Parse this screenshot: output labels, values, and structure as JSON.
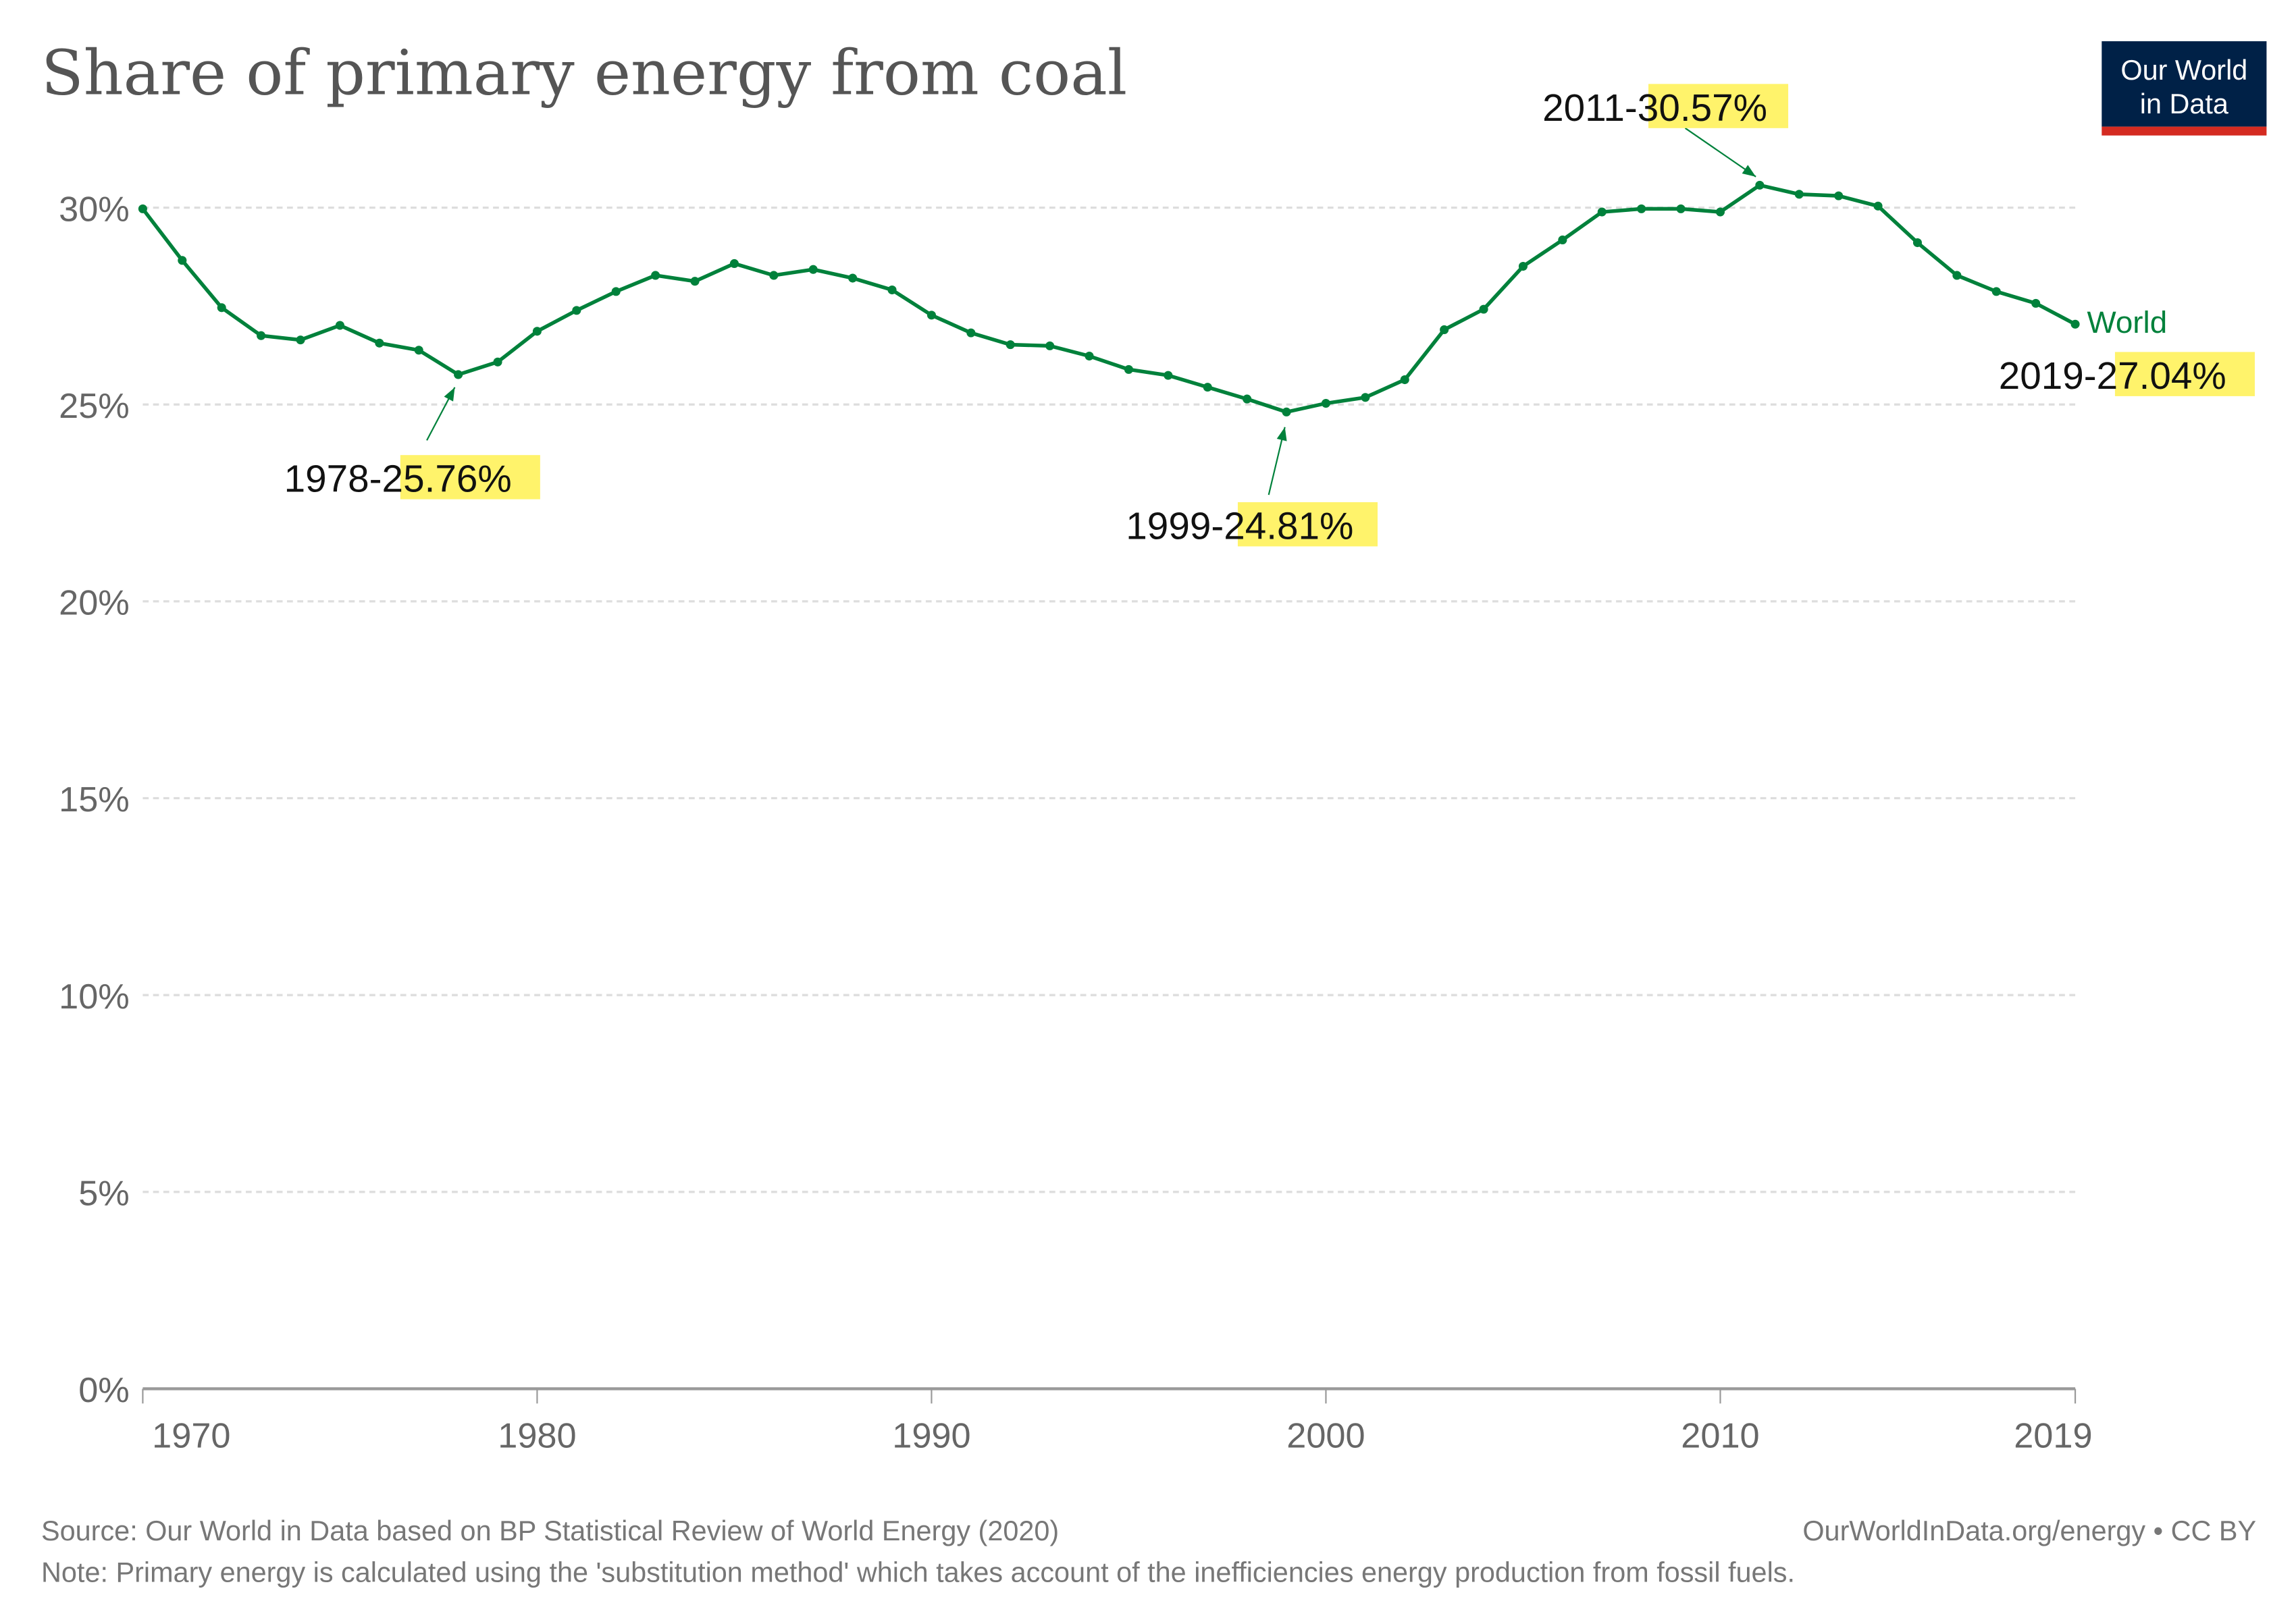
{
  "chart_data": {
    "type": "line",
    "title": "Share of primary energy from coal",
    "x": [
      1970,
      1971,
      1972,
      1973,
      1974,
      1975,
      1976,
      1977,
      1978,
      1979,
      1980,
      1981,
      1982,
      1983,
      1984,
      1985,
      1986,
      1987,
      1988,
      1989,
      1990,
      1991,
      1992,
      1993,
      1994,
      1995,
      1996,
      1997,
      1998,
      1999,
      2000,
      2001,
      2002,
      2003,
      2004,
      2005,
      2006,
      2007,
      2008,
      2009,
      2010,
      2011,
      2012,
      2013,
      2014,
      2015,
      2016,
      2017,
      2018,
      2019
    ],
    "series": [
      {
        "name": "World",
        "color": "#00813b",
        "values": [
          29.97,
          28.66,
          27.46,
          26.75,
          26.64,
          27.01,
          26.56,
          26.38,
          25.76,
          26.08,
          26.86,
          27.39,
          27.87,
          28.28,
          28.13,
          28.58,
          28.28,
          28.43,
          28.21,
          27.91,
          27.27,
          26.82,
          26.52,
          26.49,
          26.23,
          25.89,
          25.74,
          25.44,
          25.14,
          24.81,
          25.03,
          25.18,
          25.63,
          26.9,
          27.42,
          28.51,
          29.18,
          29.89,
          29.97,
          29.97,
          29.89,
          30.57,
          30.34,
          30.3,
          30.04,
          29.11,
          28.28,
          27.87,
          27.57,
          27.04
        ]
      }
    ],
    "xlim": [
      1970,
      2019
    ],
    "ylim": [
      0,
      30
    ],
    "yticks": [
      0,
      5,
      10,
      15,
      20,
      25,
      30
    ],
    "ytick_labels": [
      "0%",
      "5%",
      "10%",
      "15%",
      "20%",
      "25%",
      "30%"
    ],
    "xticks": [
      1970,
      1980,
      1990,
      2000,
      2010,
      2019
    ],
    "xtick_labels": [
      "1970",
      "1980",
      "1990",
      "2000",
      "2010",
      "2019"
    ],
    "grid": "horizontal dashed",
    "legend": "inline end label",
    "annotations": [
      {
        "year": "1978",
        "value": "25.76%",
        "position": "below"
      },
      {
        "year": "1999",
        "value": "24.81%",
        "position": "below"
      },
      {
        "year": "2011",
        "value": "30.57%",
        "position": "above"
      },
      {
        "year": "2019",
        "value": "27.04%",
        "position": "right"
      }
    ],
    "highlight_color": "#fff36b"
  },
  "logo": {
    "line1": "Our World",
    "line2": "in Data",
    "bg": "#002147",
    "stripe": "#d42b21"
  },
  "footer": {
    "source": "Source: Our World in Data based on BP Statistical Review of World Energy (2020)",
    "license": "OurWorldInData.org/energy • CC BY",
    "note": "Note: Primary energy is calculated using the 'substitution method' which takes account of the inefficiencies energy production from fossil fuels."
  }
}
